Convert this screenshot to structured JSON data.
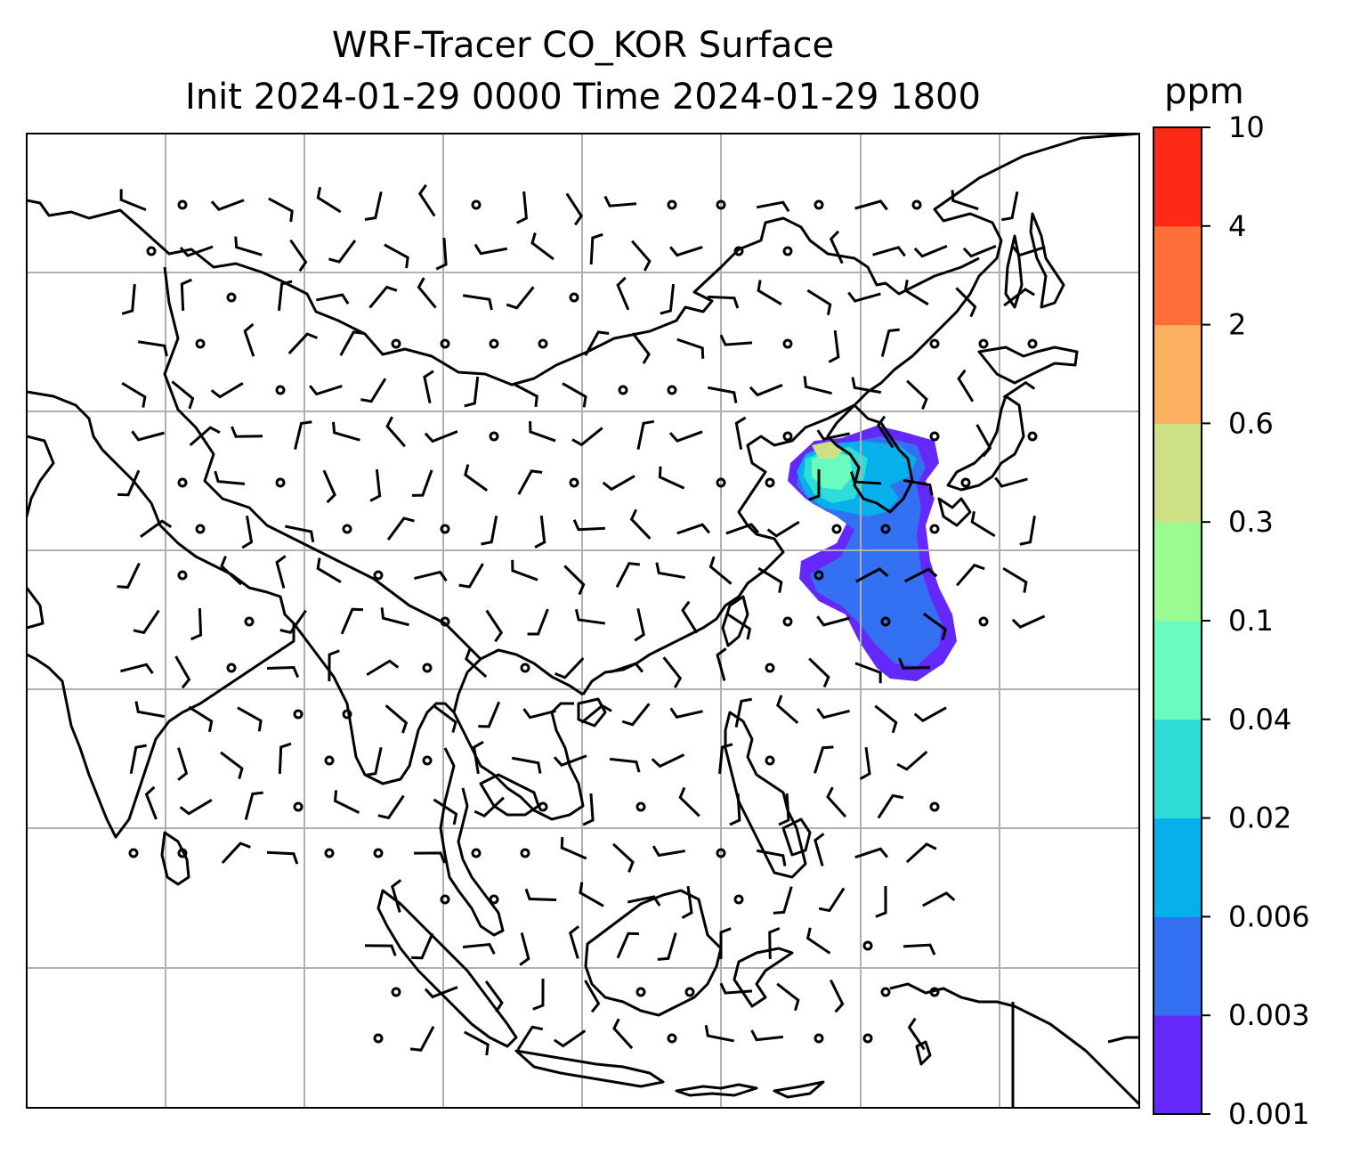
{
  "title": {
    "line1": "WRF-Tracer CO_KOR Surface",
    "line2": "Init 2024-01-29 0000 Time 2024-01-29 1800"
  },
  "colorbar": {
    "unit": "ppm",
    "levels": [
      "0.001",
      "0.003",
      "0.006",
      "0.02",
      "0.04",
      "0.1",
      "0.3",
      "0.6",
      "2",
      "4",
      "10"
    ],
    "colors": [
      "#6528fb",
      "#3370f2",
      "#05b0eb",
      "#2edcd8",
      "#68fcc0",
      "#9afb91",
      "#cde084",
      "#fcb060",
      "#fe6f3a",
      "#fe2a17"
    ]
  },
  "map": {
    "gridline_color": "#b0b0b0",
    "coastline_color": "#000000",
    "tracer_plume_colors": [
      "#6528fb",
      "#3370f2",
      "#05b0eb",
      "#2edcd8",
      "#68fcc0",
      "#cde084"
    ]
  }
}
